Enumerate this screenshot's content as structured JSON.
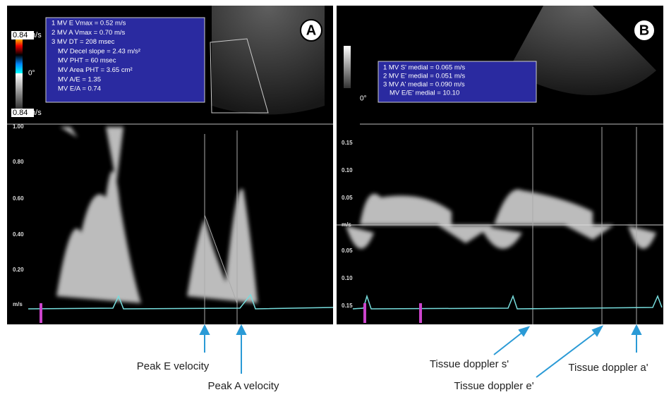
{
  "panels": [
    {
      "label": "A",
      "scale_top": "0.84",
      "scale_top_unit": "m/s",
      "scale_zero": "0°",
      "scale_bottom": "0.84",
      "scale_bottom_unit": "m/s",
      "measurements": [
        "1 MV E Vmax = 0.52 m/s",
        "2 MV A Vmax = 0.70 m/s",
        "3 MV DT = 208 msec",
        "MV Decel slope = 2.43 m/s²",
        "MV PHT = 60 msec",
        "MV Area PHT = 3.65 cm²",
        "MV A/E = 1.35",
        "MV E/A = 0.74"
      ],
      "axis_labels": [
        "1.00",
        "0.80",
        "0.60",
        "0.40",
        "0.20",
        "m/s"
      ]
    },
    {
      "label": "B",
      "scale_zero": "0°",
      "measurements": [
        "1 MV S' medial = 0.065 m/s",
        "2 MV E' medial = 0.051 m/s",
        "3 MV A' medial = 0.090 m/s",
        "MV E/E' medial = 10.10"
      ],
      "axis_labels": [
        "0.15",
        "0.10",
        "0.05",
        "m/s",
        "0.05",
        "0.10",
        "0.15"
      ]
    }
  ],
  "annotations": [
    "Peak E velocity",
    "Peak A velocity",
    "Tissue doppler s'",
    "Tissue doppler e'",
    "Tissue doppler a'"
  ]
}
